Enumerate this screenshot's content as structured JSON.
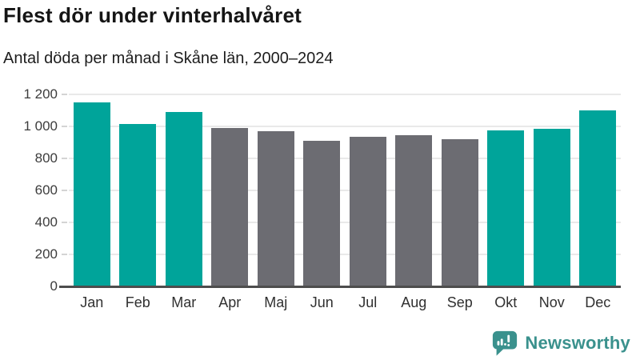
{
  "header": {
    "title": "Flest dör under vinterhalvåret",
    "subtitle": "Antal döda per månad i Skåne län, 2000–2024"
  },
  "chart_data": {
    "type": "bar",
    "title": "Flest dör under vinterhalvåret",
    "subtitle": "Antal döda per månad i Skåne län, 2000–2024",
    "categories": [
      "Jan",
      "Feb",
      "Mar",
      "Apr",
      "Maj",
      "Jun",
      "Jul",
      "Aug",
      "Sep",
      "Okt",
      "Nov",
      "Dec"
    ],
    "values": [
      1150,
      1015,
      1090,
      990,
      970,
      910,
      935,
      945,
      920,
      975,
      985,
      1100
    ],
    "bar_color_keys": [
      "winter",
      "winter",
      "winter",
      "summer",
      "summer",
      "summer",
      "summer",
      "summer",
      "summer",
      "winter",
      "winter",
      "winter"
    ],
    "colors": {
      "winter": "#00a49a",
      "summer": "#6c6c72"
    },
    "ylim": [
      0,
      1200
    ],
    "yticks": [
      {
        "value": 0,
        "label": "0"
      },
      {
        "value": 200,
        "label": "200"
      },
      {
        "value": 400,
        "label": "400"
      },
      {
        "value": 600,
        "label": "600"
      },
      {
        "value": 800,
        "label": "800"
      },
      {
        "value": 1000,
        "label": "1 000"
      },
      {
        "value": 1200,
        "label": "1 200"
      }
    ],
    "grid": "horizontal",
    "legend": "none",
    "axis_color": "#4d4d4d",
    "gridline_color": "#e9e9e9"
  },
  "footer": {
    "brand": "Newsworthy",
    "brand_color": "#3a918d",
    "logo_icon": "newsworthy-speech-bubble-chart-icon"
  }
}
